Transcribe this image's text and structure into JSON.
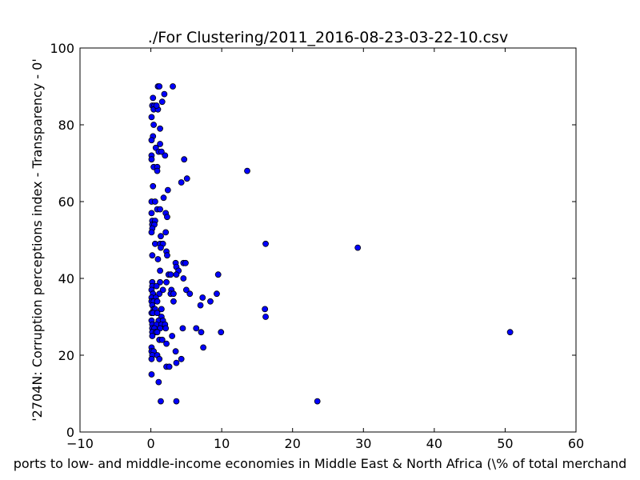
{
  "colors": {
    "point_fill": "#0000ff",
    "point_stroke": "#000000",
    "axes": "#000000",
    "background": "#ffffff"
  },
  "chart_data": {
    "type": "scatter",
    "title": "./For Clustering/2011_2016-08-23-03-22-10.csv",
    "xlabel": "ports to low- and middle-income economies in Middle East & North Africa  (\\% of total merchand",
    "ylabel": "'2704N: Corruption perceptions index - Transparency - 0'",
    "xlim": [
      -10,
      60
    ],
    "ylim": [
      0,
      100
    ],
    "xticks": [
      -10,
      0,
      10,
      20,
      30,
      40,
      50,
      60
    ],
    "yticks": [
      0,
      20,
      40,
      60,
      80,
      100
    ],
    "grid": false,
    "legend": "none",
    "points": [
      [
        1.0,
        90
      ],
      [
        1.2,
        90
      ],
      [
        3.1,
        90
      ],
      [
        0.3,
        87
      ],
      [
        1.9,
        88
      ],
      [
        1.6,
        86
      ],
      [
        0.2,
        85
      ],
      [
        0.5,
        85
      ],
      [
        0.4,
        84
      ],
      [
        1.0,
        84
      ],
      [
        0.8,
        85
      ],
      [
        0.1,
        82
      ],
      [
        0.4,
        80
      ],
      [
        1.3,
        79
      ],
      [
        0.3,
        77
      ],
      [
        0.1,
        76
      ],
      [
        1.3,
        75
      ],
      [
        0.7,
        74
      ],
      [
        1.1,
        73
      ],
      [
        2.0,
        72
      ],
      [
        0.1,
        72
      ],
      [
        1.5,
        73
      ],
      [
        0.1,
        71
      ],
      [
        4.7,
        71
      ],
      [
        0.4,
        69
      ],
      [
        0.9,
        69
      ],
      [
        0.9,
        68
      ],
      [
        5.1,
        66
      ],
      [
        4.3,
        65
      ],
      [
        0.3,
        64
      ],
      [
        13.6,
        68
      ],
      [
        2.4,
        63
      ],
      [
        1.8,
        61
      ],
      [
        0.1,
        60
      ],
      [
        0.6,
        60
      ],
      [
        0.9,
        58
      ],
      [
        1.3,
        58
      ],
      [
        0.1,
        57
      ],
      [
        2.1,
        57
      ],
      [
        2.3,
        56
      ],
      [
        0.2,
        55
      ],
      [
        0.6,
        55
      ],
      [
        0.2,
        54
      ],
      [
        0.5,
        54
      ],
      [
        0.2,
        53
      ],
      [
        0.1,
        52
      ],
      [
        2.1,
        52
      ],
      [
        1.4,
        51
      ],
      [
        0.6,
        49
      ],
      [
        1.3,
        49
      ],
      [
        1.7,
        49
      ],
      [
        1.4,
        48
      ],
      [
        16.2,
        49
      ],
      [
        29.2,
        48
      ],
      [
        2.2,
        47
      ],
      [
        2.3,
        46
      ],
      [
        0.2,
        46
      ],
      [
        1.0,
        45
      ],
      [
        4.6,
        44
      ],
      [
        4.9,
        44
      ],
      [
        3.5,
        44
      ],
      [
        3.6,
        43
      ],
      [
        1.3,
        42
      ],
      [
        3.9,
        42
      ],
      [
        2.5,
        41
      ],
      [
        2.8,
        41
      ],
      [
        3.6,
        41
      ],
      [
        9.5,
        41
      ],
      [
        4.6,
        40
      ],
      [
        0.2,
        39
      ],
      [
        1.3,
        39
      ],
      [
        2.2,
        39
      ],
      [
        0.2,
        38
      ],
      [
        0.8,
        38
      ],
      [
        0.1,
        37
      ],
      [
        1.7,
        37
      ],
      [
        2.9,
        37
      ],
      [
        5.0,
        37
      ],
      [
        0.3,
        36
      ],
      [
        1.2,
        36
      ],
      [
        2.8,
        36
      ],
      [
        3.2,
        36
      ],
      [
        5.5,
        36
      ],
      [
        9.3,
        36
      ],
      [
        0.1,
        35
      ],
      [
        0.7,
        35
      ],
      [
        7.3,
        35
      ],
      [
        0.1,
        34
      ],
      [
        0.4,
        34
      ],
      [
        0.9,
        34
      ],
      [
        3.2,
        34
      ],
      [
        8.4,
        34
      ],
      [
        0.2,
        33
      ],
      [
        7.0,
        33
      ],
      [
        0.4,
        32
      ],
      [
        0.6,
        32
      ],
      [
        1.5,
        32
      ],
      [
        16.1,
        32
      ],
      [
        0.1,
        31
      ],
      [
        0.3,
        31
      ],
      [
        0.9,
        31
      ],
      [
        1.5,
        30
      ],
      [
        16.2,
        30
      ],
      [
        0.1,
        29
      ],
      [
        1.1,
        29
      ],
      [
        1.7,
        29
      ],
      [
        0.2,
        28
      ],
      [
        0.8,
        28
      ],
      [
        1.5,
        28
      ],
      [
        2.0,
        28
      ],
      [
        0.2,
        27
      ],
      [
        0.5,
        27
      ],
      [
        1.3,
        27
      ],
      [
        2.1,
        27
      ],
      [
        4.5,
        27
      ],
      [
        6.4,
        27
      ],
      [
        0.2,
        26
      ],
      [
        0.7,
        26
      ],
      [
        0.9,
        26
      ],
      [
        7.1,
        26
      ],
      [
        9.9,
        26
      ],
      [
        50.7,
        26
      ],
      [
        0.2,
        25
      ],
      [
        3.0,
        25
      ],
      [
        1.2,
        24
      ],
      [
        1.6,
        24
      ],
      [
        2.2,
        23
      ],
      [
        0.1,
        22
      ],
      [
        7.4,
        22
      ],
      [
        0.1,
        21
      ],
      [
        0.4,
        21
      ],
      [
        3.5,
        21
      ],
      [
        0.2,
        20
      ],
      [
        0.9,
        20
      ],
      [
        0.1,
        19
      ],
      [
        1.2,
        19
      ],
      [
        4.3,
        19
      ],
      [
        3.6,
        18
      ],
      [
        2.2,
        17
      ],
      [
        2.6,
        17
      ],
      [
        0.1,
        15
      ],
      [
        1.1,
        13
      ],
      [
        1.4,
        8
      ],
      [
        3.6,
        8
      ],
      [
        23.5,
        8
      ]
    ]
  }
}
